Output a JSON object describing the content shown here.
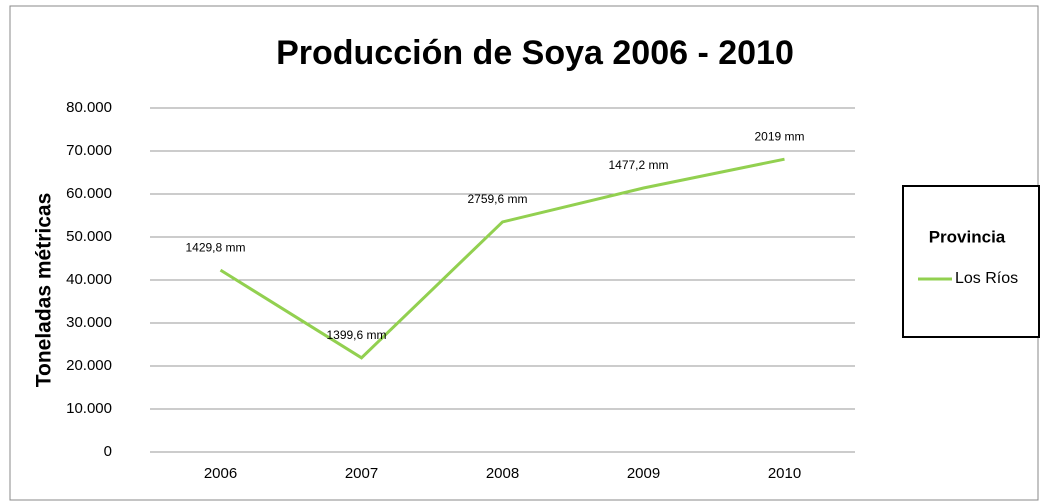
{
  "chart_data": {
    "type": "line",
    "title": "Producción de Soya 2006 - 2010",
    "y_axis_label": "Toneladas métricas",
    "categories": [
      "2006",
      "2007",
      "2008",
      "2009",
      "2010"
    ],
    "series": [
      {
        "name": "Los Ríos",
        "color": "#92d050",
        "values": [
          42300,
          21900,
          53500,
          61400,
          68100
        ]
      }
    ],
    "point_annotations": [
      "1429,8 mm",
      "1399,6 mm",
      "2759,6 mm",
      "1477,2 mm",
      "2019 mm"
    ],
    "legend_title": "Provincia",
    "legend": "right",
    "ylim": [
      0,
      80000
    ],
    "yticks": [
      0,
      {
        "value": 10000,
        "label": "10.000"
      },
      {
        "value": 20000,
        "label": "20.000"
      },
      {
        "value": 30000,
        "label": "30.000"
      },
      {
        "value": 40000,
        "label": "40.000"
      },
      {
        "value": 50000,
        "label": "50.000"
      },
      {
        "value": 60000,
        "label": "60.000"
      },
      {
        "value": 70000,
        "label": "70.000"
      },
      {
        "value": 80000,
        "label": "80.000"
      }
    ],
    "grid": true
  }
}
